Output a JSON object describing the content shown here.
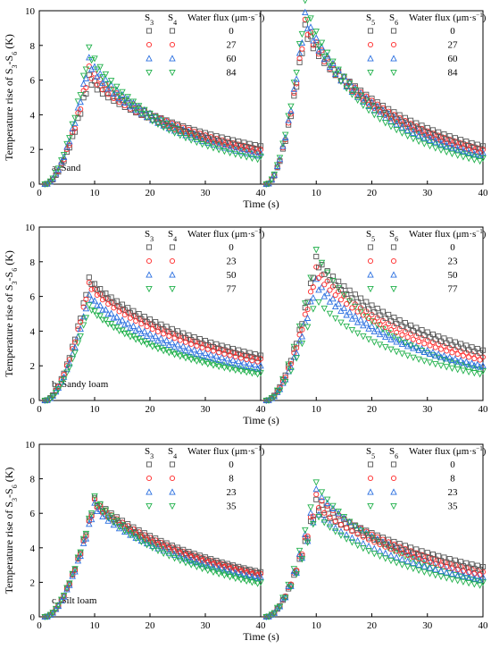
{
  "colors": {
    "gray": "#555555",
    "red": "#ff2a2a",
    "blue": "#2a6fe0",
    "green": "#22b14c"
  },
  "axis_text": {
    "ylabel_main": "Temperature rise of S",
    "ylabel_sub1": "3",
    "ylabel_dash": "-S",
    "ylabel_sub2": "6",
    "ylabel_unit": " (K)",
    "xlabel": "Time (s)",
    "legend_header": "Water flux (μm·s",
    "legend_header_sup": "−1",
    "legend_header_close": ")"
  },
  "chart_data": [
    {
      "type": "scatter",
      "panel_label": "a. Sand",
      "sensor_labels_left": [
        "S3",
        "S4"
      ],
      "sensor_labels_right": [
        "S5",
        "S6"
      ],
      "water_flux": [
        "0",
        "27",
        "60",
        "84"
      ],
      "xlabel": "Time (s)",
      "ylabel": "Temperature rise of S3-S6 (K)",
      "xlim": [
        0,
        40
      ],
      "ylim": [
        0,
        10
      ],
      "xticks": [
        0,
        10,
        20,
        30,
        40
      ],
      "yticks": [
        0,
        2,
        4,
        6,
        8,
        10
      ],
      "peaks_left": {
        "s3": [
          6.3,
          6.8,
          7.3,
          7.9
        ],
        "s4": [
          5.9,
          6.3,
          6.9,
          7.5
        ]
      },
      "peaks_right": {
        "s5": [
          9.2,
          9.5,
          9.9,
          10.6
        ],
        "s6": [
          8.7,
          9.0,
          9.4,
          10.0
        ]
      },
      "tail_left": {
        "s3": [
          2.2,
          2.0,
          1.8,
          1.6
        ],
        "s4": [
          2.0,
          1.8,
          1.6,
          1.4
        ]
      },
      "tail_right": {
        "s5": [
          2.2,
          2.0,
          1.8,
          1.5
        ],
        "s6": [
          2.0,
          1.8,
          1.6,
          1.3
        ]
      },
      "peak_time_left": 9,
      "peak_time_right": 8
    },
    {
      "type": "scatter",
      "panel_label": "b. Sandy loam",
      "sensor_labels_left": [
        "S3",
        "S4"
      ],
      "sensor_labels_right": [
        "S5",
        "S6"
      ],
      "water_flux": [
        "0",
        "23",
        "50",
        "77"
      ],
      "xlabel": "Time (s)",
      "ylabel": "Temperature rise of S3-S6 (K)",
      "xlim": [
        0,
        40
      ],
      "ylim": [
        0,
        10
      ],
      "xticks": [
        0,
        10,
        20,
        30,
        40
      ],
      "yticks": [
        0,
        2,
        4,
        6,
        8,
        10
      ],
      "peaks_left": {
        "s3": [
          7.1,
          6.8,
          6.1,
          5.5
        ],
        "s4": [
          6.9,
          6.6,
          6.0,
          5.4
        ]
      },
      "peaks_right": {
        "s5": [
          8.3,
          7.7,
          7.0,
          8.7
        ],
        "s6": [
          7.9,
          7.3,
          6.6,
          5.9
        ]
      },
      "tail_left": {
        "s3": [
          2.6,
          2.4,
          2.0,
          1.6
        ],
        "s4": [
          2.4,
          2.2,
          1.8,
          1.5
        ]
      },
      "tail_right": {
        "s5": [
          2.9,
          2.5,
          2.0,
          1.7
        ],
        "s6": [
          2.7,
          2.3,
          1.9,
          1.5
        ]
      },
      "peak_time_left": 9,
      "peak_time_right": 10
    },
    {
      "type": "scatter",
      "panel_label": "c. Silt loam",
      "sensor_labels_left": [
        "S3",
        "S4"
      ],
      "sensor_labels_right": [
        "S5",
        "S6"
      ],
      "water_flux": [
        "0",
        "8",
        "23",
        "35"
      ],
      "xlabel": "Time (s)",
      "ylabel": "Temperature rise of S3-S6 (K)",
      "xlim": [
        0,
        40
      ],
      "ylim": [
        0,
        10
      ],
      "xticks": [
        0,
        10,
        20,
        30,
        40
      ],
      "yticks": [
        0,
        2,
        4,
        6,
        8,
        10
      ],
      "peaks_left": {
        "s3": [
          6.9,
          6.8,
          6.6,
          7.0
        ],
        "s4": [
          6.6,
          6.5,
          6.3,
          6.7
        ]
      },
      "peaks_right": {
        "s5": [
          6.8,
          7.1,
          7.4,
          7.8
        ],
        "s6": [
          6.3,
          6.5,
          6.1,
          6.0
        ]
      },
      "tail_left": {
        "s3": [
          2.6,
          2.5,
          2.3,
          2.0
        ],
        "s4": [
          2.5,
          2.4,
          2.2,
          1.9
        ]
      },
      "tail_right": {
        "s5": [
          2.9,
          2.6,
          2.3,
          2.0
        ],
        "s6": [
          2.7,
          2.4,
          2.1,
          1.8
        ]
      },
      "peak_time_left": 10,
      "peak_time_right": 10
    }
  ]
}
